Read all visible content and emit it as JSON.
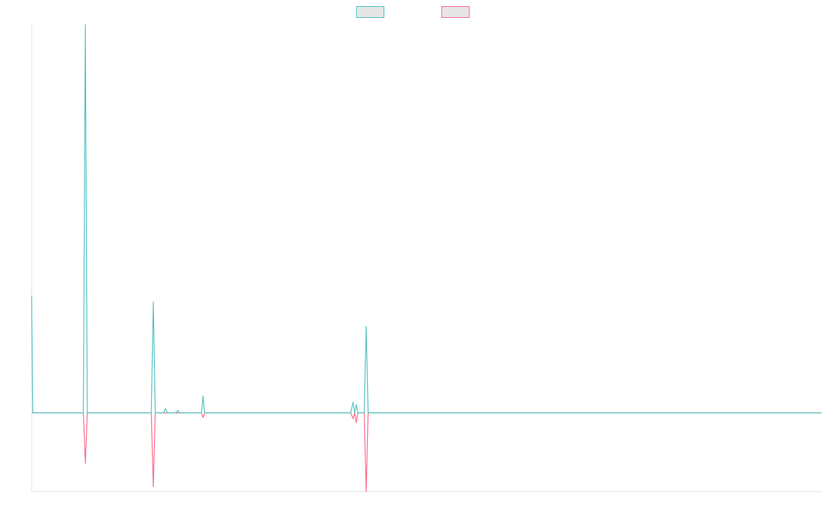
{
  "chart_data": {
    "type": "line",
    "title": "",
    "xlabel": "",
    "ylabel": "",
    "legend_position": "top-center",
    "grid": false,
    "x_range": [
      0,
      100
    ],
    "y_range": [
      -6.1,
      30.1
    ],
    "series": [
      {
        "color": "#4bc0c0",
        "points": [
          [
            0,
            9.1
          ],
          [
            0.15,
            0
          ],
          [
            6.55,
            0
          ],
          [
            6.8,
            30.1
          ],
          [
            7.05,
            0
          ],
          [
            15.15,
            0
          ],
          [
            15.4,
            8.6
          ],
          [
            15.65,
            0
          ],
          [
            16.7,
            0
          ],
          [
            16.95,
            0.35
          ],
          [
            17.2,
            0
          ],
          [
            18.3,
            0
          ],
          [
            18.5,
            0.2
          ],
          [
            18.7,
            0
          ],
          [
            21.5,
            0
          ],
          [
            21.7,
            1.3
          ],
          [
            21.9,
            0
          ],
          [
            40.4,
            0
          ],
          [
            40.7,
            0.85
          ],
          [
            40.9,
            0
          ],
          [
            41.1,
            0.65
          ],
          [
            41.3,
            0
          ],
          [
            42.1,
            0
          ],
          [
            42.35,
            6.7
          ],
          [
            42.6,
            0
          ],
          [
            100,
            0
          ]
        ]
      },
      {
        "color": "#ff6384",
        "points": [
          [
            0,
            0
          ],
          [
            6.55,
            0
          ],
          [
            6.8,
            -3.9
          ],
          [
            7.05,
            0
          ],
          [
            15.15,
            0
          ],
          [
            15.4,
            -5.7
          ],
          [
            15.65,
            0
          ],
          [
            21.5,
            0
          ],
          [
            21.7,
            -0.35
          ],
          [
            21.9,
            0
          ],
          [
            40.4,
            0
          ],
          [
            40.7,
            -0.45
          ],
          [
            40.9,
            0
          ],
          [
            41.1,
            -0.75
          ],
          [
            41.3,
            0
          ],
          [
            42.1,
            0
          ],
          [
            42.35,
            -6.1
          ],
          [
            42.6,
            0
          ],
          [
            100,
            0
          ]
        ]
      }
    ]
  }
}
